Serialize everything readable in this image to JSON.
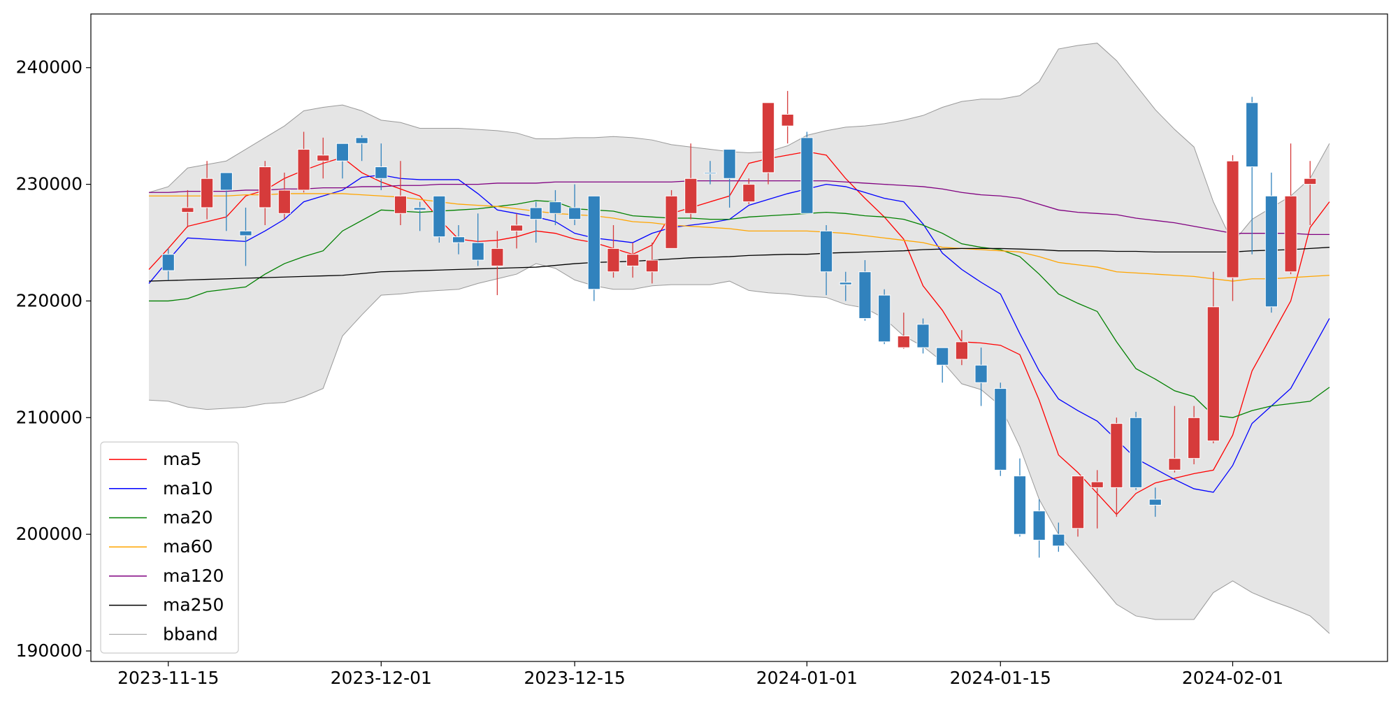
{
  "chart_data": {
    "type": "candlestick",
    "x": [
      0,
      1,
      2,
      3,
      4,
      5,
      6,
      7,
      8,
      9,
      10,
      11,
      12,
      13,
      14,
      15,
      16,
      17,
      18,
      19,
      20,
      21,
      22,
      23,
      24,
      25,
      26,
      27,
      28,
      29,
      30,
      31,
      32,
      33,
      34,
      35,
      36,
      37,
      38,
      39,
      40,
      41,
      42,
      43,
      44,
      45,
      46,
      47,
      48,
      49,
      50,
      51,
      52,
      53,
      54,
      55,
      56,
      57,
      58,
      59,
      60,
      61
    ],
    "xlim": [
      -3,
      64
    ],
    "xticks": [
      {
        "value": 1,
        "label": "2023-11-15"
      },
      {
        "value": 12,
        "label": "2023-12-01"
      },
      {
        "value": 22,
        "label": "2023-12-15"
      },
      {
        "value": 34,
        "label": "2024-01-01"
      },
      {
        "value": 44,
        "label": "2024-01-15"
      },
      {
        "value": 56,
        "label": "2024-02-01"
      }
    ],
    "ylim": [
      189100,
      244600
    ],
    "yticks": [
      190000,
      200000,
      210000,
      220000,
      230000,
      240000
    ],
    "grid": false,
    "legend": "lower left",
    "up_color": "#d63b3b",
    "down_color": "#3182bd",
    "open": [
      null,
      224000,
      227600,
      228000,
      231000,
      226000,
      228000,
      227500,
      229500,
      232000,
      233500,
      234000,
      231500,
      227500,
      228000,
      229000,
      225500,
      225000,
      223000,
      226000,
      228000,
      228500,
      228000,
      229000,
      222500,
      223000,
      222500,
      224500,
      227500,
      231000,
      233000,
      228500,
      231000,
      235000,
      234000,
      226000,
      221600,
      222500,
      220500,
      216000,
      218000,
      216000,
      215000,
      214500,
      212500,
      205000,
      202000,
      200000,
      200500,
      204000,
      204000,
      210000,
      203000,
      205500,
      206500,
      208000,
      222000,
      237000,
      229000,
      222500,
      230000,
      null
    ],
    "high": [
      null,
      224500,
      229500,
      232000,
      231000,
      228000,
      232000,
      231000,
      234500,
      234000,
      233500,
      234200,
      233500,
      232000,
      228500,
      229000,
      226500,
      227500,
      226000,
      227500,
      228500,
      229500,
      230000,
      229000,
      226500,
      225000,
      225000,
      229500,
      233500,
      232000,
      233000,
      230500,
      237000,
      238000,
      234500,
      226500,
      222500,
      223500,
      221000,
      219000,
      218500,
      216000,
      217500,
      216000,
      213000,
      206500,
      203000,
      201000,
      205000,
      205500,
      210000,
      210500,
      204000,
      211000,
      211000,
      222500,
      232500,
      237500,
      231000,
      233500,
      232000,
      null
    ],
    "low": [
      null,
      221800,
      226300,
      227000,
      226000,
      223000,
      226500,
      227000,
      229300,
      230500,
      230500,
      232000,
      229500,
      226500,
      226000,
      225000,
      224000,
      223000,
      220500,
      224500,
      225000,
      226500,
      226500,
      220000,
      222000,
      222000,
      221500,
      224500,
      227000,
      230000,
      228000,
      228300,
      230000,
      233500,
      227500,
      220500,
      220000,
      218300,
      216300,
      215900,
      215500,
      213000,
      214500,
      211000,
      205000,
      199800,
      198000,
      198500,
      199800,
      200500,
      201500,
      203800,
      201500,
      205300,
      206000,
      207800,
      220000,
      224000,
      219000,
      222300,
      226500,
      null
    ],
    "close": [
      null,
      222600,
      228000,
      230500,
      229500,
      225600,
      231500,
      229500,
      233000,
      232500,
      232000,
      233500,
      230500,
      229000,
      227800,
      225500,
      225000,
      223500,
      224500,
      226500,
      227000,
      227500,
      227000,
      221000,
      224500,
      224000,
      223500,
      229000,
      230500,
      230900,
      230500,
      230000,
      237000,
      236000,
      227500,
      222500,
      221400,
      218500,
      216500,
      217000,
      216000,
      214500,
      216500,
      213000,
      205500,
      200000,
      199500,
      199000,
      205000,
      204500,
      209500,
      204000,
      202500,
      206500,
      210000,
      219500,
      232000,
      231500,
      219500,
      229000,
      230500,
      null
    ],
    "series": [
      {
        "name": "ma5",
        "color": "#ff0000",
        "values": [
          222700,
          224500,
          226400,
          226800,
          227200,
          229000,
          229500,
          230500,
          231200,
          231800,
          232300,
          231000,
          230200,
          229600,
          229000,
          227000,
          225300,
          225100,
          225200,
          225500,
          226000,
          225800,
          225300,
          225000,
          224500,
          224000,
          224800,
          227500,
          228000,
          228500,
          229000,
          231800,
          232200,
          232500,
          232800,
          232500,
          230500,
          228800,
          227200,
          225300,
          221300,
          219200,
          216500,
          216400,
          216200,
          215400,
          211500,
          206800,
          205300,
          203500,
          201700,
          203500,
          204400,
          204800,
          205200,
          205500,
          208500,
          214000,
          217000,
          220000,
          226300,
          228500
        ]
      },
      {
        "name": "ma10",
        "color": "#0000ff",
        "values": [
          221500,
          223500,
          225400,
          225300,
          225200,
          225100,
          226000,
          227000,
          228500,
          229000,
          229500,
          230600,
          230800,
          230500,
          230400,
          230400,
          230400,
          229200,
          227800,
          227500,
          227200,
          226800,
          225800,
          225400,
          225200,
          225000,
          225800,
          226300,
          226500,
          226700,
          227000,
          228200,
          228700,
          229200,
          229600,
          230000,
          229800,
          229300,
          228800,
          228500,
          226600,
          224100,
          222700,
          221600,
          220600,
          217200,
          214000,
          211600,
          210600,
          209700,
          208100,
          206500,
          205600,
          204700,
          203900,
          203600,
          205900,
          209500,
          211000,
          212500,
          215500,
          218500
        ]
      },
      {
        "name": "ma20",
        "color": "#008000",
        "values": [
          220000,
          220000,
          220200,
          220800,
          221000,
          221200,
          222300,
          223200,
          223800,
          224300,
          226000,
          226900,
          227800,
          227700,
          227600,
          227700,
          227800,
          227900,
          228100,
          228300,
          228600,
          228500,
          227900,
          227800,
          227700,
          227300,
          227200,
          227100,
          227100,
          227000,
          227000,
          227200,
          227300,
          227400,
          227500,
          227600,
          227500,
          227300,
          227200,
          227000,
          226500,
          225800,
          224900,
          224600,
          224400,
          223800,
          222300,
          220600,
          219800,
          219100,
          216500,
          214200,
          213300,
          212300,
          211800,
          210200,
          210000,
          210600,
          211000,
          211200,
          211400,
          212600
        ]
      },
      {
        "name": "ma60",
        "color": "#ffa500",
        "values": [
          229000,
          229000,
          229000,
          229000,
          229000,
          229100,
          229100,
          229200,
          229200,
          229200,
          229200,
          229100,
          229000,
          228900,
          228700,
          228500,
          228300,
          228200,
          228100,
          227900,
          227700,
          227500,
          227400,
          227300,
          227100,
          226800,
          226700,
          226500,
          226400,
          226300,
          226200,
          226000,
          226000,
          226000,
          226000,
          225900,
          225800,
          225600,
          225400,
          225200,
          225000,
          224600,
          224500,
          224400,
          224300,
          224200,
          223800,
          223300,
          223100,
          222900,
          222500,
          222400,
          222300,
          222200,
          222100,
          221900,
          221700,
          221900,
          221900,
          222000,
          222100,
          222200
        ]
      },
      {
        "name": "ma120",
        "color": "#800080",
        "values": [
          229300,
          229300,
          229400,
          229400,
          229400,
          229500,
          229500,
          229600,
          229600,
          229700,
          229700,
          229800,
          229800,
          229900,
          229900,
          230000,
          230000,
          230000,
          230100,
          230100,
          230100,
          230200,
          230200,
          230200,
          230200,
          230200,
          230200,
          230200,
          230300,
          230300,
          230300,
          230300,
          230300,
          230300,
          230300,
          230300,
          230200,
          230100,
          230000,
          229900,
          229800,
          229600,
          229300,
          229100,
          229000,
          228800,
          228300,
          227800,
          227600,
          227500,
          227400,
          227100,
          226900,
          226700,
          226400,
          226100,
          225800,
          225800,
          225800,
          225800,
          225700,
          225700
        ]
      },
      {
        "name": "ma250",
        "color": "#000000",
        "values": [
          221700,
          221750,
          221800,
          221850,
          221900,
          221950,
          222000,
          222050,
          222100,
          222150,
          222200,
          222350,
          222500,
          222550,
          222600,
          222650,
          222700,
          222750,
          222800,
          222850,
          222900,
          223050,
          223200,
          223300,
          223350,
          223400,
          223500,
          223600,
          223700,
          223750,
          223800,
          223900,
          223950,
          224000,
          224000,
          224100,
          224150,
          224200,
          224250,
          224300,
          224400,
          224450,
          224500,
          224500,
          224500,
          224450,
          224400,
          224300,
          224300,
          224300,
          224250,
          224250,
          224200,
          224200,
          224200,
          224200,
          224200,
          224300,
          224350,
          224400,
          224500,
          224600
        ]
      }
    ],
    "bband": {
      "name": "bband",
      "color": "#999999",
      "fill": "#e5e5e5",
      "upper": [
        229300,
        229800,
        231400,
        231700,
        232000,
        233000,
        234000,
        235000,
        236300,
        236600,
        236800,
        236300,
        235500,
        235300,
        234800,
        234800,
        234800,
        234700,
        234600,
        234400,
        233900,
        233900,
        234000,
        234000,
        234100,
        234000,
        233800,
        233400,
        233200,
        233000,
        232800,
        232700,
        232800,
        233300,
        234200,
        234600,
        234900,
        235000,
        235200,
        235500,
        235900,
        236600,
        237100,
        237300,
        237300,
        237600,
        238800,
        241600,
        241900,
        242100,
        240600,
        238500,
        236400,
        234700,
        233200,
        228500,
        225000,
        227000,
        228000,
        229000,
        230500,
        233500
      ],
      "lower": [
        211500,
        211400,
        210900,
        210700,
        210800,
        210900,
        211200,
        211300,
        211800,
        212500,
        217000,
        218800,
        220500,
        220600,
        220800,
        220900,
        221000,
        221500,
        221900,
        222300,
        223200,
        222800,
        221800,
        221300,
        221000,
        221000,
        221300,
        221400,
        221400,
        221400,
        221700,
        220900,
        220700,
        220600,
        220400,
        220300,
        219700,
        219400,
        218500,
        217000,
        216100,
        214800,
        212900,
        212400,
        211000,
        207500,
        203000,
        200000,
        198000,
        196000,
        194000,
        193000,
        192700,
        192700,
        192700,
        195000,
        196000,
        195000,
        194300,
        193700,
        193000,
        191500
      ]
    }
  }
}
